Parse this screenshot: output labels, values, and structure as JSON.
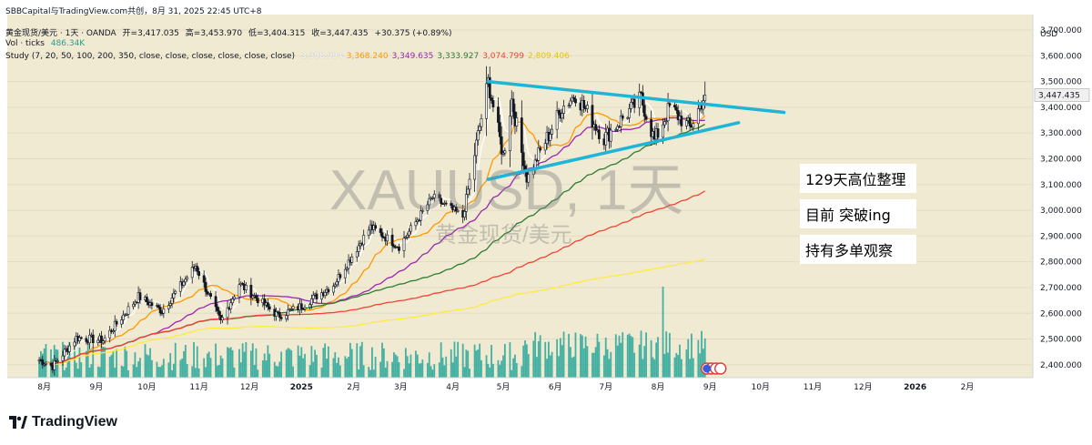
{
  "caption": "SBBCapital与TradingView.com共创，8月 31, 2025 22:45 UTC+8",
  "header": {
    "symbol": "黄金现货/美元 · 1天 · OANDA",
    "open": "开=3,417.035",
    "high": "高=3,453.970",
    "low": "低=3,404.315",
    "close": "收=3,447.435",
    "change": "+30.375 (+0.89%)",
    "vol_label": "Vol · ticks",
    "vol_value": "486.34K",
    "study_label": "Study (7, 20, 50, 100, 200, 350, close, close, close, close, close, close)",
    "study_values": [
      "3,398.994",
      "3,368.240",
      "3,349.635",
      "3,333.927",
      "3,074.799",
      "2,809.406"
    ]
  },
  "watermark": {
    "symbol": "XAUUSD, 1天",
    "name": "黄金现货/美元"
  },
  "notes": [
    "129天高位整理",
    "目前 突破ing",
    "持有多单观察"
  ],
  "brand": "TradingView",
  "colors": {
    "background": "#f0ead2",
    "up": "#131722",
    "volume": "#26a69a",
    "trendline": "#1fb5d6",
    "ma7": "#ffffff",
    "ma20": "#ff9800",
    "ma50": "#9c27b0",
    "ma100": "#2e7d32",
    "ma200": "#f44336",
    "ma350": "#ffeb3b",
    "last_price_label": "#f0f0f0"
  },
  "chart_data": {
    "type": "candlestick",
    "title": "黄金现货/美元 · 1天 · OANDA",
    "y_axis_unit": "USD",
    "ylim": [
      2350,
      3760
    ],
    "y_ticks": [
      2400,
      2500,
      2600,
      2700,
      2800,
      2900,
      3000,
      3100,
      3200,
      3300,
      3400,
      3500,
      3600,
      3700
    ],
    "x_labels": [
      "8月",
      "9月",
      "10月",
      "11月",
      "12月",
      "2025",
      "2月",
      "3月",
      "4月",
      "5月",
      "6月",
      "7月",
      "8月",
      "9月",
      "10月",
      "11月",
      "12月",
      "2026",
      "2月"
    ],
    "last_price": 3447.435,
    "price_path": [
      [
        "2024-07-29",
        2420
      ],
      [
        "2024-08-06",
        2395
      ],
      [
        "2024-08-20",
        2505
      ],
      [
        "2024-09-05",
        2495
      ],
      [
        "2024-09-26",
        2665
      ],
      [
        "2024-10-10",
        2610
      ],
      [
        "2024-10-30",
        2785
      ],
      [
        "2024-11-14",
        2565
      ],
      [
        "2024-11-25",
        2715
      ],
      [
        "2024-12-18",
        2590
      ],
      [
        "2024-12-31",
        2625
      ],
      [
        "2025-01-20",
        2710
      ],
      [
        "2025-02-11",
        2935
      ],
      [
        "2025-02-28",
        2860
      ],
      [
        "2025-03-20",
        3050
      ],
      [
        "2025-04-07",
        2975
      ],
      [
        "2025-04-22",
        3500
      ],
      [
        "2025-05-01",
        3210
      ],
      [
        "2025-05-06",
        3430
      ],
      [
        "2025-05-15",
        3120
      ],
      [
        "2025-06-05",
        3400
      ],
      [
        "2025-06-13",
        3450
      ],
      [
        "2025-06-30",
        3280
      ],
      [
        "2025-07-22",
        3435
      ],
      [
        "2025-07-30",
        3270
      ],
      [
        "2025-08-08",
        3400
      ],
      [
        "2025-08-20",
        3320
      ],
      [
        "2025-08-29",
        3447
      ]
    ],
    "moving_averages": [
      {
        "name": "7",
        "color": "#ffffff",
        "last": 3398.994
      },
      {
        "name": "20",
        "color": "#ff9800",
        "last": 3368.24
      },
      {
        "name": "50",
        "color": "#9c27b0",
        "last": 3349.635
      },
      {
        "name": "100",
        "color": "#2e7d32",
        "last": 3333.927
      },
      {
        "name": "200",
        "color": "#f44336",
        "last": 3074.799
      },
      {
        "name": "350",
        "color": "#ffeb3b",
        "last": 2809.406
      }
    ],
    "volume_max": "486.34K",
    "trendlines": [
      {
        "from": [
          "2025-04-22",
          3500
        ],
        "to": [
          "2025-10-15",
          3380
        ]
      },
      {
        "from": [
          "2025-04-22",
          3120
        ],
        "to": [
          "2025-09-18",
          3340
        ]
      }
    ]
  }
}
